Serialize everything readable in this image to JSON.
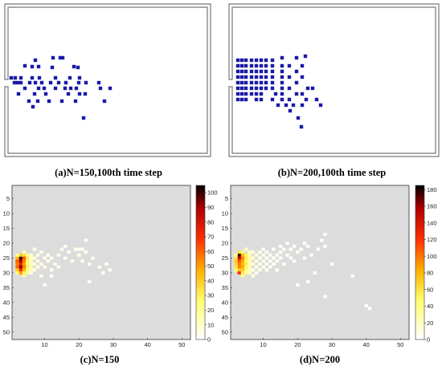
{
  "colors": {
    "room_wall": "#777777",
    "pedestrian": "#1a1aa8",
    "heatmap_background": "#dcdcdc"
  },
  "panels": {
    "a": {
      "caption": "(a)N=150,100th time step"
    },
    "b": {
      "caption": "(b)N=200,100th time step"
    },
    "c": {
      "caption": "(c)N=150"
    },
    "d": {
      "caption": "(d)N=200"
    }
  },
  "chart_data": [
    {
      "type": "scatter",
      "panel": "a",
      "description_level": "snapshot",
      "x": [
        44,
        66,
        75,
        78,
        31,
        40,
        48,
        65,
        92,
        97,
        14,
        19,
        26,
        40,
        49,
        69,
        87,
        99,
        18,
        22,
        26,
        37,
        44,
        52,
        63,
        73,
        82,
        98,
        107,
        123,
        31,
        48,
        55,
        69,
        81,
        88,
        95,
        125,
        137,
        23,
        43,
        57,
        85,
        99,
        106,
        36,
        47,
        61,
        77,
        94,
        130,
        41,
        104
      ],
      "y": [
        75,
        72,
        72,
        72,
        82,
        83,
        83,
        84,
        83,
        84,
        97,
        97,
        97,
        97,
        97,
        97,
        97,
        97,
        103,
        103,
        103,
        103,
        103,
        103,
        103,
        103,
        103,
        103,
        103,
        103,
        110,
        110,
        110,
        110,
        110,
        110,
        110,
        110,
        110,
        117,
        117,
        117,
        117,
        117,
        117,
        126,
        126,
        126,
        126,
        126,
        126,
        133,
        147
      ],
      "xlim": [
        0,
        262
      ],
      "ylim": [
        0,
        195
      ]
    },
    {
      "type": "scatter",
      "panel": "b",
      "description_level": "snapshot",
      "x": [
        296,
        301,
        306,
        313,
        319,
        325,
        331,
        339,
        351,
        369,
        380,
        296,
        301,
        306,
        313,
        319,
        325,
        331,
        339,
        351,
        360,
        376,
        296,
        301,
        306,
        313,
        319,
        325,
        331,
        339,
        351,
        369,
        296,
        301,
        306,
        313,
        319,
        325,
        331,
        339,
        351,
        360,
        376,
        296,
        301,
        306,
        313,
        319,
        325,
        331,
        339,
        351,
        369,
        296,
        301,
        306,
        313,
        319,
        325,
        331,
        339,
        351,
        360,
        383,
        389,
        296,
        301,
        306,
        313,
        319,
        325,
        343,
        351,
        369,
        376,
        296,
        301,
        306,
        319,
        325,
        339,
        351,
        360,
        381,
        394,
        346,
        356,
        365,
        376,
        399,
        361,
        371,
        375
      ],
      "y": [
        75,
        75,
        75,
        75,
        75,
        75,
        75,
        75,
        72,
        72,
        70,
        82,
        82,
        82,
        82,
        82,
        82,
        82,
        82,
        82,
        82,
        82,
        89,
        89,
        89,
        89,
        89,
        89,
        89,
        89,
        89,
        89,
        96,
        96,
        96,
        96,
        96,
        96,
        96,
        96,
        96,
        96,
        96,
        103,
        103,
        103,
        103,
        103,
        103,
        103,
        103,
        103,
        103,
        110,
        110,
        110,
        110,
        110,
        110,
        110,
        110,
        110,
        110,
        110,
        110,
        117,
        117,
        117,
        117,
        117,
        117,
        117,
        117,
        117,
        117,
        124,
        124,
        124,
        124,
        124,
        124,
        124,
        124,
        124,
        124,
        131,
        131,
        131,
        131,
        131,
        138,
        147,
        158
      ],
      "xlim": [
        286,
        546
      ],
      "ylim": [
        0,
        195
      ]
    },
    {
      "type": "heatmap",
      "panel": "c",
      "xticks": [
        10,
        20,
        30,
        40,
        50
      ],
      "yticks": [
        5,
        10,
        15,
        20,
        25,
        30,
        35,
        40,
        45,
        50
      ],
      "colorbar_ticks": [
        0,
        10,
        20,
        30,
        40,
        50,
        60,
        70,
        80,
        90,
        100
      ],
      "colorbar_range": [
        0,
        105
      ],
      "colormap": "hot (reversed)",
      "cells": [
        [
          3,
          25,
          100
        ],
        [
          3,
          26,
          90
        ],
        [
          3,
          27,
          75
        ],
        [
          3,
          28,
          92
        ],
        [
          3,
          29,
          70
        ],
        [
          3,
          24,
          40
        ],
        [
          3,
          30,
          50
        ],
        [
          2,
          25,
          45
        ],
        [
          2,
          26,
          60
        ],
        [
          2,
          27,
          55
        ],
        [
          2,
          28,
          60
        ],
        [
          2,
          29,
          40
        ],
        [
          2,
          24,
          20
        ],
        [
          2,
          30,
          25
        ],
        [
          4,
          24,
          35
        ],
        [
          4,
          25,
          60
        ],
        [
          4,
          26,
          55
        ],
        [
          4,
          27,
          50
        ],
        [
          4,
          28,
          55
        ],
        [
          4,
          29,
          45
        ],
        [
          4,
          30,
          30
        ],
        [
          4,
          23,
          15
        ],
        [
          4,
          31,
          20
        ],
        [
          5,
          24,
          22
        ],
        [
          5,
          25,
          30
        ],
        [
          5,
          26,
          28
        ],
        [
          5,
          27,
          25
        ],
        [
          5,
          28,
          30
        ],
        [
          5,
          29,
          24
        ],
        [
          5,
          30,
          18
        ],
        [
          6,
          25,
          12
        ],
        [
          6,
          26,
          15
        ],
        [
          6,
          27,
          14
        ],
        [
          6,
          28,
          14
        ],
        [
          6,
          29,
          12
        ],
        [
          6,
          24,
          10
        ],
        [
          6,
          30,
          10
        ],
        [
          7,
          25,
          10
        ],
        [
          7,
          27,
          9
        ],
        [
          7,
          29,
          8
        ],
        [
          7,
          22,
          6
        ],
        [
          8,
          24,
          8
        ],
        [
          8,
          26,
          7
        ],
        [
          8,
          28,
          7
        ],
        [
          9,
          23,
          6
        ],
        [
          9,
          27,
          6
        ],
        [
          9,
          31,
          5
        ],
        [
          10,
          25,
          6
        ],
        [
          10,
          28,
          5
        ],
        [
          11,
          24,
          5
        ],
        [
          11,
          26,
          5
        ],
        [
          12,
          25,
          4
        ],
        [
          12,
          29,
          4
        ],
        [
          13,
          27,
          4
        ],
        [
          14,
          24,
          5
        ],
        [
          14,
          28,
          4
        ],
        [
          15,
          22,
          4
        ],
        [
          16,
          25,
          4
        ],
        [
          16,
          21,
          4
        ],
        [
          17,
          23,
          3
        ],
        [
          18,
          26,
          3
        ],
        [
          19,
          22,
          4
        ],
        [
          20,
          22,
          5
        ],
        [
          20,
          24,
          4
        ],
        [
          21,
          22,
          4
        ],
        [
          21,
          26,
          3
        ],
        [
          22,
          19,
          3
        ],
        [
          22,
          23,
          3
        ],
        [
          23,
          27,
          3
        ],
        [
          24,
          25,
          3
        ],
        [
          26,
          28,
          3
        ],
        [
          27,
          30,
          3
        ],
        [
          28,
          27,
          3
        ],
        [
          29,
          29,
          3
        ],
        [
          12,
          31,
          3
        ],
        [
          10,
          34,
          3
        ],
        [
          23,
          33,
          3
        ]
      ]
    },
    {
      "type": "heatmap",
      "panel": "d",
      "xticks": [
        10,
        20,
        30,
        40,
        50
      ],
      "yticks": [
        5,
        10,
        15,
        20,
        25,
        30,
        35,
        40,
        45,
        50
      ],
      "colorbar_ticks": [
        0,
        20,
        40,
        60,
        80,
        100,
        120,
        140,
        160,
        180
      ],
      "colorbar_range": [
        0,
        185
      ],
      "colormap": "hot (reversed)",
      "cells": [
        [
          3,
          24,
          175
        ],
        [
          3,
          25,
          150
        ],
        [
          3,
          26,
          110
        ],
        [
          3,
          27,
          100
        ],
        [
          3,
          28,
          95
        ],
        [
          3,
          29,
          70
        ],
        [
          3,
          30,
          120
        ],
        [
          3,
          23,
          60
        ],
        [
          2,
          25,
          60
        ],
        [
          2,
          26,
          70
        ],
        [
          2,
          27,
          65
        ],
        [
          2,
          28,
          60
        ],
        [
          2,
          29,
          45
        ],
        [
          2,
          24,
          40
        ],
        [
          4,
          23,
          45
        ],
        [
          4,
          24,
          80
        ],
        [
          4,
          25,
          95
        ],
        [
          4,
          26,
          85
        ],
        [
          4,
          27,
          80
        ],
        [
          4,
          28,
          85
        ],
        [
          4,
          29,
          70
        ],
        [
          4,
          30,
          55
        ],
        [
          4,
          31,
          40
        ],
        [
          5,
          24,
          50
        ],
        [
          5,
          25,
          55
        ],
        [
          5,
          26,
          50
        ],
        [
          5,
          27,
          55
        ],
        [
          5,
          28,
          50
        ],
        [
          5,
          29,
          45
        ],
        [
          5,
          30,
          35
        ],
        [
          5,
          22,
          20
        ],
        [
          6,
          24,
          30
        ],
        [
          6,
          25,
          35
        ],
        [
          6,
          26,
          30
        ],
        [
          6,
          27,
          30
        ],
        [
          6,
          28,
          30
        ],
        [
          6,
          29,
          25
        ],
        [
          6,
          30,
          20
        ],
        [
          6,
          23,
          18
        ],
        [
          7,
          23,
          18
        ],
        [
          7,
          25,
          20
        ],
        [
          7,
          27,
          18
        ],
        [
          7,
          29,
          15
        ],
        [
          7,
          31,
          12
        ],
        [
          8,
          24,
          14
        ],
        [
          8,
          26,
          14
        ],
        [
          8,
          28,
          12
        ],
        [
          8,
          30,
          10
        ],
        [
          9,
          23,
          10
        ],
        [
          9,
          25,
          10
        ],
        [
          9,
          27,
          10
        ],
        [
          9,
          29,
          8
        ],
        [
          10,
          24,
          8
        ],
        [
          10,
          26,
          8
        ],
        [
          10,
          28,
          8
        ],
        [
          10,
          22,
          6
        ],
        [
          11,
          23,
          7
        ],
        [
          11,
          25,
          7
        ],
        [
          11,
          27,
          6
        ],
        [
          11,
          29,
          6
        ],
        [
          12,
          24,
          6
        ],
        [
          12,
          26,
          6
        ],
        [
          12,
          28,
          5
        ],
        [
          13,
          22,
          5
        ],
        [
          13,
          25,
          5
        ],
        [
          13,
          27,
          5
        ],
        [
          14,
          24,
          5
        ],
        [
          14,
          26,
          4
        ],
        [
          14,
          29,
          4
        ],
        [
          15,
          21,
          4
        ],
        [
          15,
          23,
          4
        ],
        [
          15,
          25,
          4
        ],
        [
          16,
          22,
          4
        ],
        [
          16,
          27,
          4
        ],
        [
          17,
          20,
          4
        ],
        [
          17,
          24,
          4
        ],
        [
          18,
          22,
          3
        ],
        [
          18,
          25,
          3
        ],
        [
          19,
          21,
          3
        ],
        [
          19,
          26,
          3
        ],
        [
          20,
          23,
          3
        ],
        [
          21,
          22,
          3
        ],
        [
          22,
          20,
          3
        ],
        [
          22,
          25,
          3
        ],
        [
          23,
          21,
          3
        ],
        [
          24,
          24,
          3
        ],
        [
          26,
          22,
          3
        ],
        [
          27,
          19,
          3
        ],
        [
          28,
          21,
          3
        ],
        [
          28,
          17,
          3
        ],
        [
          30,
          27,
          3
        ],
        [
          25,
          30,
          3
        ],
        [
          23,
          33,
          3
        ],
        [
          20,
          34,
          3
        ],
        [
          36,
          31,
          3
        ],
        [
          28,
          38,
          3
        ],
        [
          40,
          41,
          3
        ],
        [
          41,
          42,
          3
        ]
      ]
    }
  ]
}
